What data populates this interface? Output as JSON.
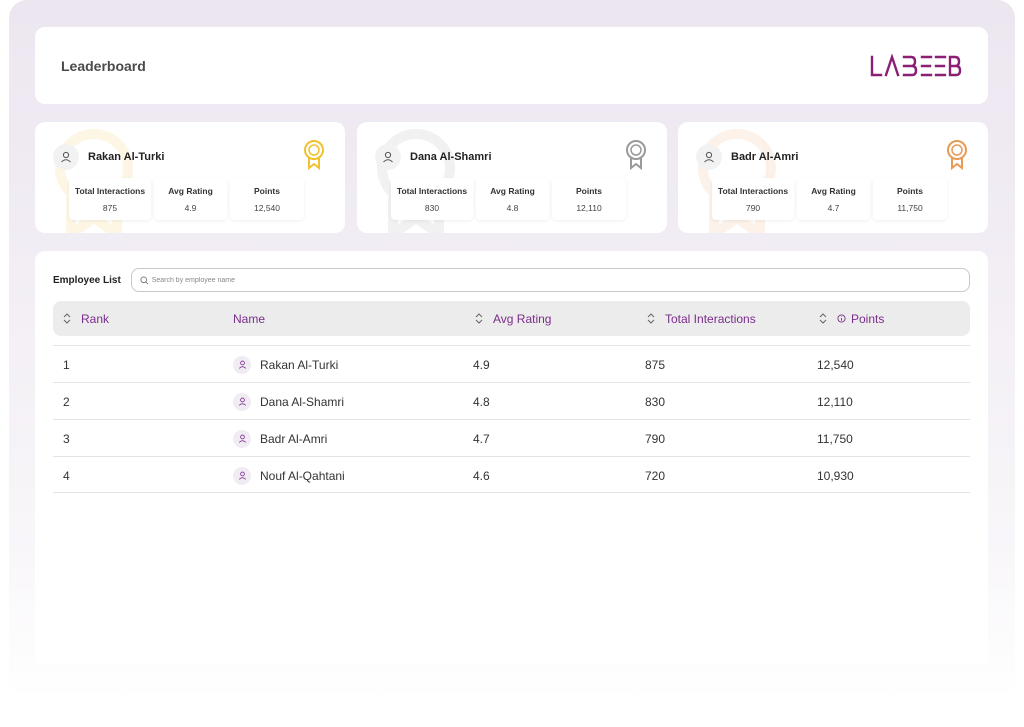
{
  "header": {
    "title": "Leaderboard",
    "logo_text": "LABEEB"
  },
  "colors": {
    "brand": "#8b1f73",
    "accent_text": "#7a2d8c",
    "gold": "#f2c12e",
    "silver": "#9a9a9a",
    "bronze": "#e99a55"
  },
  "top_cards": [
    {
      "name": "Rakan Al-Turki",
      "medal": "gold-medal-icon",
      "stats": [
        {
          "label": "Total Interactions",
          "value": "875"
        },
        {
          "label": "Avg Rating",
          "value": "4.9"
        },
        {
          "label": "Points",
          "value": "12,540"
        }
      ]
    },
    {
      "name": "Dana Al-Shamri",
      "medal": "silver-medal-icon",
      "stats": [
        {
          "label": "Total Interactions",
          "value": "830"
        },
        {
          "label": "Avg Rating",
          "value": "4.8"
        },
        {
          "label": "Points",
          "value": "12,110"
        }
      ]
    },
    {
      "name": "Badr Al-Amri",
      "medal": "bronze-medal-icon",
      "stats": [
        {
          "label": "Total Interactions",
          "value": "790"
        },
        {
          "label": "Avg Rating",
          "value": "4.7"
        },
        {
          "label": "Points",
          "value": "11,750"
        }
      ]
    }
  ],
  "employee_list": {
    "title": "Employee List",
    "search_placeholder": "Search by employee name",
    "columns": {
      "rank": "Rank",
      "name": "Name",
      "avg_rating": "Avg Rating",
      "total_interactions": "Total Interactions",
      "points": "Points"
    },
    "rows": [
      {
        "rank": "1",
        "name": "Rakan Al-Turki",
        "avg_rating": "4.9",
        "total_interactions": "875",
        "points": "12,540"
      },
      {
        "rank": "2",
        "name": "Dana Al-Shamri",
        "avg_rating": "4.8",
        "total_interactions": "830",
        "points": "12,110"
      },
      {
        "rank": "3",
        "name": "Badr Al-Amri",
        "avg_rating": "4.7",
        "total_interactions": "790",
        "points": "11,750"
      },
      {
        "rank": "4",
        "name": "Nouf Al-Qahtani",
        "avg_rating": "4.6",
        "total_interactions": "720",
        "points": "10,930"
      }
    ]
  }
}
